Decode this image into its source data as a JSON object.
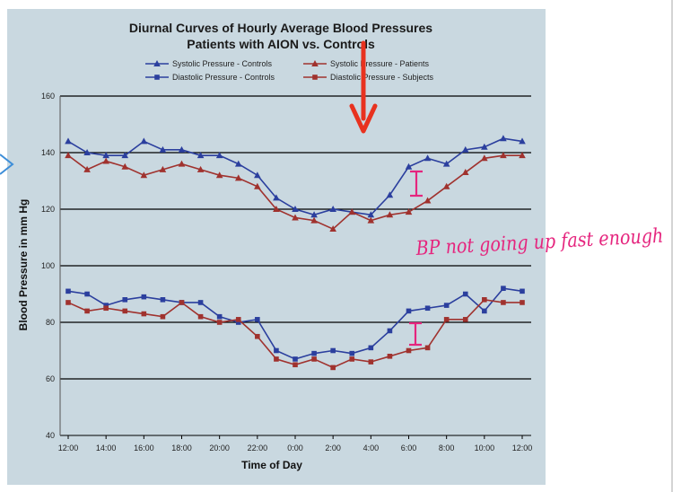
{
  "chart_data": {
    "type": "line",
    "title": "Diurnal Curves of Hourly Average Blood Pressures",
    "subtitle": "Patients with AION vs. Controls",
    "xlabel": "Time of Day",
    "ylabel": "Blood Pressure in mm Hg",
    "ylim": [
      40,
      160
    ],
    "yticks": [
      40,
      60,
      80,
      100,
      120,
      140,
      160
    ],
    "grid": true,
    "legend_position": "top",
    "x_tick_labels": [
      "12:00",
      "14:00",
      "16:00",
      "18:00",
      "20:00",
      "22:00",
      "0:00",
      "2:00",
      "4:00",
      "6:00",
      "8:00",
      "10:00",
      "12:00"
    ],
    "x": [
      "12:00",
      "13:00",
      "14:00",
      "15:00",
      "16:00",
      "17:00",
      "18:00",
      "19:00",
      "20:00",
      "21:00",
      "22:00",
      "23:00",
      "0:00",
      "1:00",
      "2:00",
      "3:00",
      "4:00",
      "5:00",
      "6:00",
      "7:00",
      "8:00",
      "9:00",
      "10:00",
      "11:00",
      "12:00"
    ],
    "series": [
      {
        "name": "Systolic Pressure - Controls",
        "color": "#2b3f9e",
        "marker": "triangle",
        "values": [
          144,
          140,
          139,
          139,
          144,
          141,
          141,
          139,
          139,
          136,
          132,
          124,
          120,
          118,
          120,
          119,
          118,
          125,
          135,
          138,
          136,
          141,
          142,
          145,
          144
        ]
      },
      {
        "name": "Systolic Pressure - Patients",
        "color": "#a0322e",
        "marker": "triangle",
        "values": [
          139,
          134,
          137,
          135,
          132,
          134,
          136,
          134,
          132,
          131,
          128,
          120,
          117,
          116,
          113,
          119,
          116,
          118,
          119,
          123,
          128,
          133,
          138,
          139,
          139
        ]
      },
      {
        "name": "Diastolic Pressure - Controls",
        "color": "#2b3f9e",
        "marker": "square",
        "values": [
          91,
          90,
          86,
          88,
          89,
          88,
          87,
          87,
          82,
          80,
          81,
          70,
          67,
          69,
          70,
          69,
          71,
          77,
          84,
          85,
          86,
          90,
          84,
          92,
          91
        ]
      },
      {
        "name": "Diastolic Pressure - Subjects",
        "color": "#a0322e",
        "marker": "square",
        "values": [
          87,
          84,
          85,
          84,
          83,
          82,
          87,
          82,
          80,
          81,
          75,
          67,
          65,
          67,
          64,
          67,
          66,
          68,
          70,
          71,
          81,
          81,
          88,
          87,
          87
        ]
      }
    ]
  },
  "annotations": {
    "handwritten_note": "BP not going up fast enough",
    "arrow_color": "#e8321f",
    "ink_color": "#e5257e",
    "blue_mark_color": "#3d8ed8"
  }
}
